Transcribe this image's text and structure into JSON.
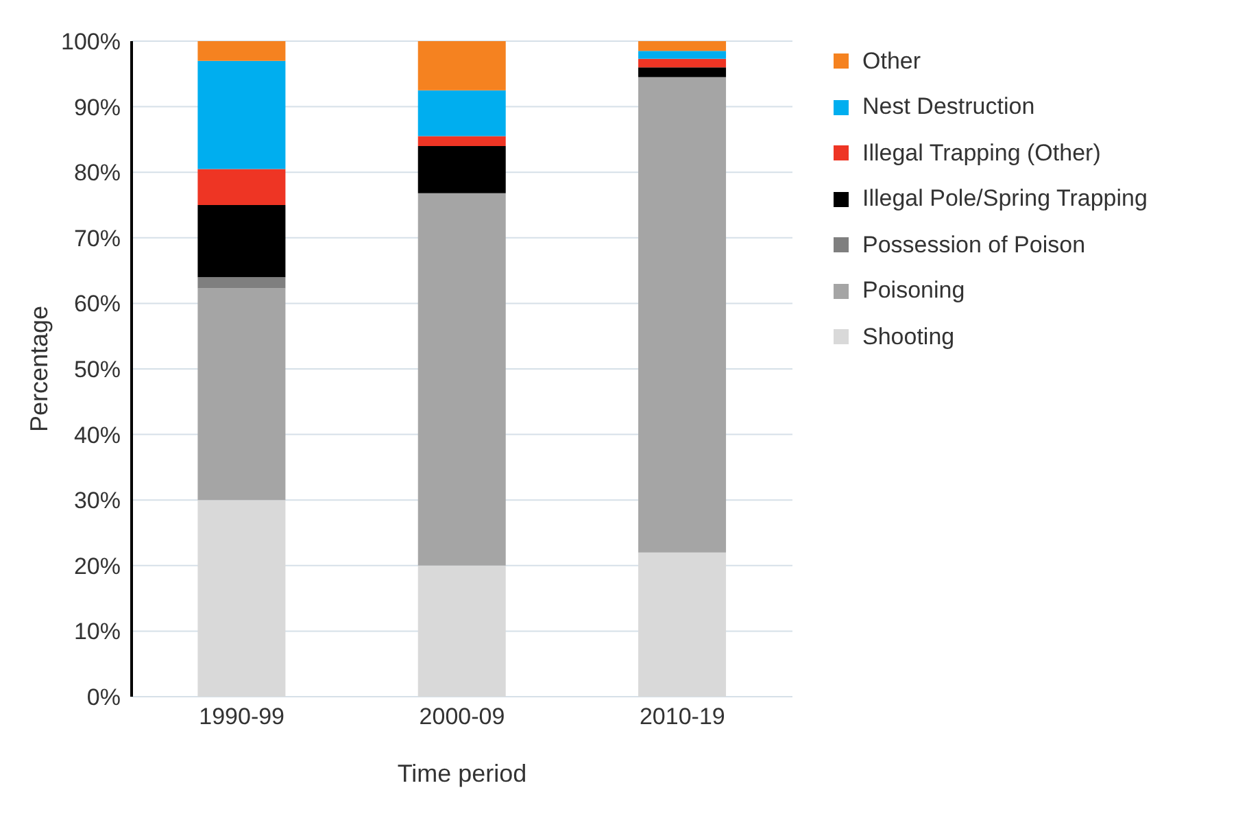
{
  "chart_data": {
    "type": "bar",
    "stacked": true,
    "xlabel": "Time period",
    "ylabel": "Percentage",
    "categories": [
      "1990-99",
      "2000-09",
      "2010-19"
    ],
    "series": [
      {
        "name": "Shooting",
        "color": "#d9d9d9",
        "values": [
          30,
          20,
          22
        ]
      },
      {
        "name": "Poisoning",
        "color": "#a5a5a5",
        "values": [
          32.3,
          56.8,
          72.5
        ]
      },
      {
        "name": "Possession of Poison",
        "color": "#7f7f7f",
        "values": [
          1.7,
          0,
          0
        ]
      },
      {
        "name": "Illegal Pole/Spring Trapping",
        "color": "#000000",
        "values": [
          11,
          7.2,
          1.5
        ]
      },
      {
        "name": "Illegal Trapping (Other)",
        "color": "#ee3524",
        "values": [
          5.5,
          1.5,
          1.3
        ]
      },
      {
        "name": "Nest Destruction",
        "color": "#00aeef",
        "values": [
          16.5,
          7,
          1.2
        ]
      },
      {
        "name": "Other",
        "color": "#f58220",
        "values": [
          3,
          7.5,
          1.5
        ]
      }
    ],
    "ylim": [
      0,
      100
    ],
    "yticks": [
      {
        "value": 0,
        "label": "0%"
      },
      {
        "value": 10,
        "label": "10%"
      },
      {
        "value": 20,
        "label": "20%"
      },
      {
        "value": 30,
        "label": "30%"
      },
      {
        "value": 40,
        "label": "40%"
      },
      {
        "value": 50,
        "label": "50%"
      },
      {
        "value": 60,
        "label": "60%"
      },
      {
        "value": 70,
        "label": "70%"
      },
      {
        "value": 80,
        "label": "80%"
      },
      {
        "value": 90,
        "label": "90%"
      },
      {
        "value": 100,
        "label": "100%"
      }
    ],
    "grid": "y",
    "legend": "right"
  }
}
